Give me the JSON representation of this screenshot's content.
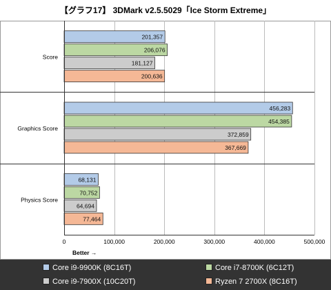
{
  "chart_data": {
    "type": "bar",
    "orientation": "horizontal",
    "title": "【グラフ17】 3DMark v2.5.5029「Ice Storm Extreme」",
    "categories": [
      "Score",
      "Graphics Score",
      "Physics Score"
    ],
    "series": [
      {
        "name": "Core i9-9900K (8C16T)",
        "color": "#b3cbe8",
        "values": [
          201357,
          456283,
          68131
        ],
        "labels": [
          "201,357",
          "456,283",
          "68,131"
        ]
      },
      {
        "name": "Core i7-8700K (6C12T)",
        "color": "#bcd8a3",
        "values": [
          206076,
          454385,
          70752
        ],
        "labels": [
          "206,076",
          "454,385",
          "70,752"
        ]
      },
      {
        "name": "Core i9-7900X (10C20T)",
        "color": "#cccccc",
        "values": [
          181127,
          372859,
          64694
        ],
        "labels": [
          "181,127",
          "372,859",
          "64,694"
        ]
      },
      {
        "name": "Ryzen 7 2700X (8C16T)",
        "color": "#f5b896",
        "values": [
          200636,
          367669,
          77464
        ],
        "labels": [
          "200,636",
          "367,669",
          "77,464"
        ]
      }
    ],
    "xlim": [
      0,
      500000
    ],
    "xticks": [
      0,
      100000,
      200000,
      300000,
      400000,
      500000
    ],
    "xtick_labels": [
      "0",
      "100,000",
      "200,000",
      "300,000",
      "400,000",
      "500,000"
    ],
    "xlabel": "Better →",
    "grid": true,
    "legend_position": "bottom"
  }
}
